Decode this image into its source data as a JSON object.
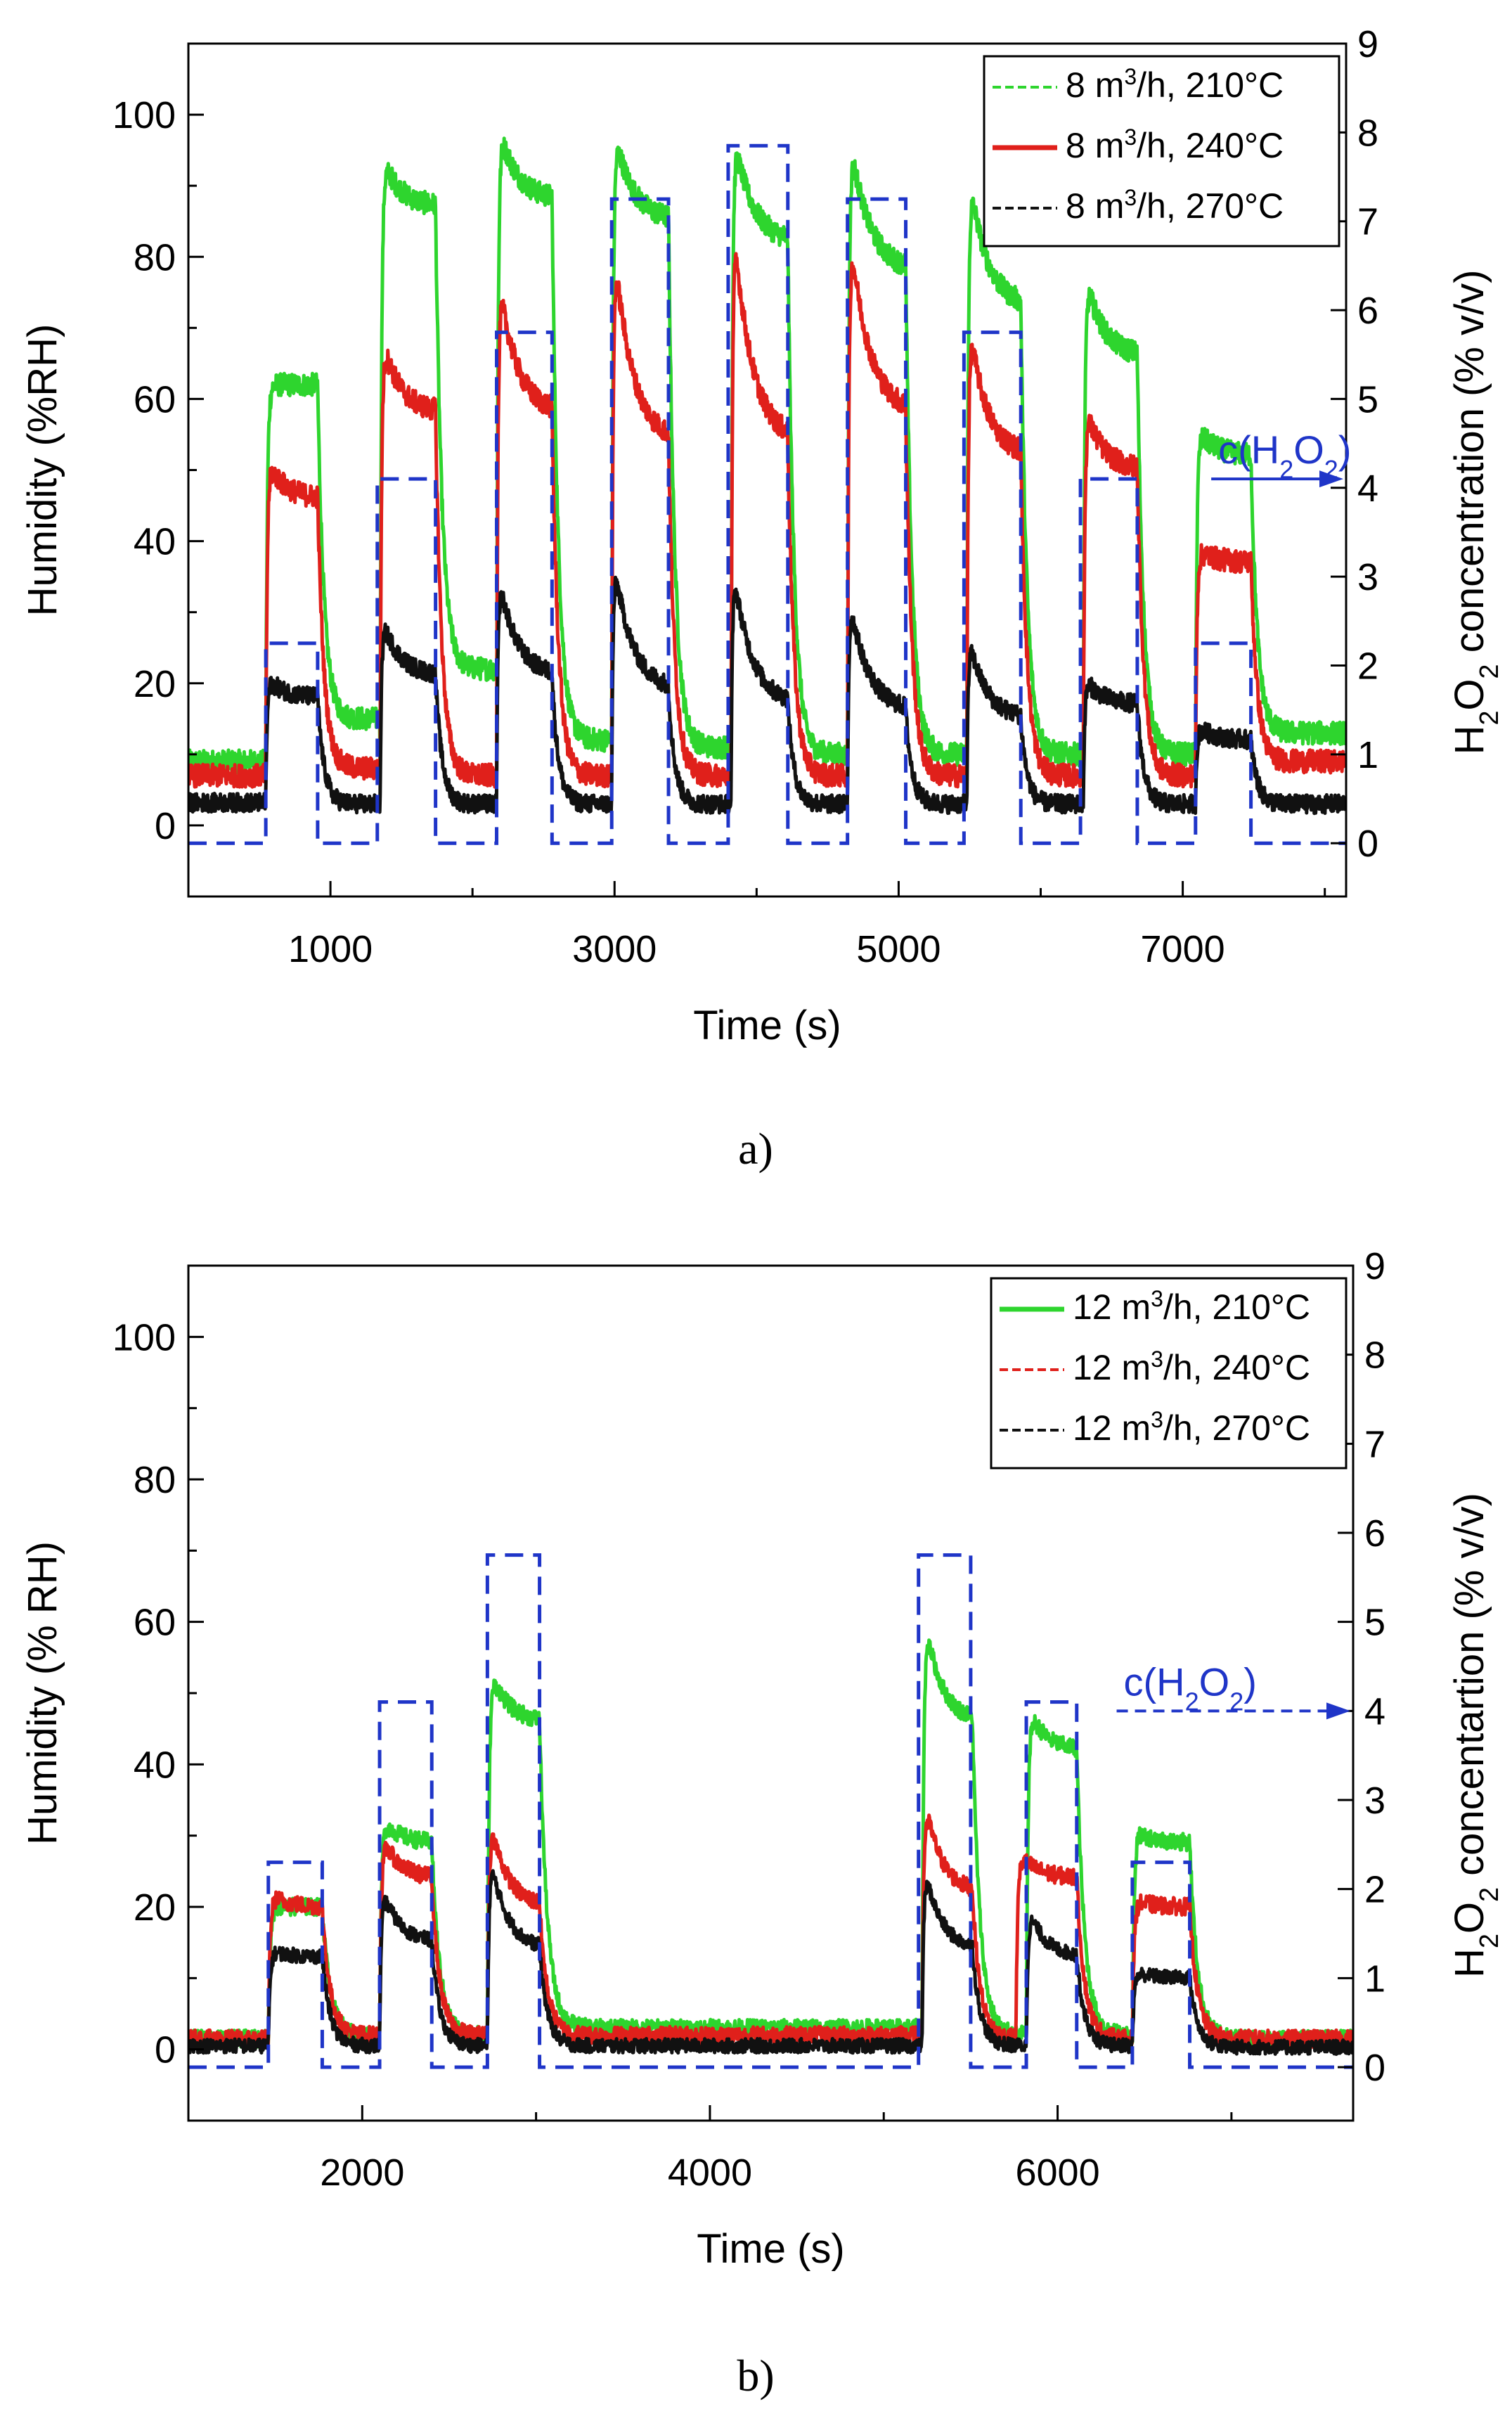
{
  "chart_data": [
    {
      "type": "line",
      "panel_label": "a)",
      "xlabel": "Time (s)",
      "ylabel": "Humidity (%RH)",
      "y2label_parts": {
        "pre": "H",
        "sub": "2",
        "mid": "O",
        "sub2": "2",
        "post": " concentration (% v/v)"
      },
      "xlim": [
        0,
        8150
      ],
      "ylim": [
        -10,
        110
      ],
      "y2lim": [
        -0.6,
        9
      ],
      "x_ticks": [
        1000,
        3000,
        5000,
        7000
      ],
      "x_tick_labels": [
        "1000",
        "3000",
        "5000",
        "7000"
      ],
      "x_minor_ticks": [
        2000,
        4000,
        6000,
        8000
      ],
      "y_ticks": [
        0,
        20,
        40,
        60,
        80,
        100
      ],
      "y_tick_labels": [
        "0",
        "20",
        "40",
        "60",
        "80",
        "100"
      ],
      "y2_ticks": [
        0,
        1,
        2,
        3,
        4,
        5,
        6,
        7,
        8,
        9
      ],
      "y2_tick_labels": [
        "0",
        "1",
        "2",
        "3",
        "4",
        "5",
        "6",
        "7",
        "8",
        "9"
      ],
      "legend_position": "top-right",
      "legend": [
        {
          "label": "8 m³/h, 210°C",
          "pre": "8 m",
          "sup": "3",
          "post": "/h, 210°C",
          "color": "#2ed52e",
          "dash": true
        },
        {
          "label": "8 m³/h, 240°C",
          "pre": "8 m",
          "sup": "3",
          "post": "/h, 240°C",
          "color": "#e0201b",
          "dash": false
        },
        {
          "label": "8 m³/h, 270°C",
          "pre": "8 m",
          "sup": "3",
          "post": "/h, 270°C",
          "color": "#111111",
          "dash": true
        }
      ],
      "annotation": {
        "pre": "c(H",
        "sub": "2",
        "mid": "O",
        "sub2": "2",
        "post": ")",
        "color": "#1f35c8",
        "x": 7250,
        "y2": 4.1,
        "arrow_to_x": 8150
      },
      "series": [
        {
          "name": "8 m³/h, 210°C",
          "color": "#2ed52e",
          "noise": 1.6,
          "baseline": 9,
          "pulses": [
            {
              "start": 545,
              "end": 910,
              "peak": 62,
              "plateau": 62,
              "tail": 15
            },
            {
              "start": 1350,
              "end": 1740,
              "peak": 95,
              "plateau": 87,
              "tail": 22
            },
            {
              "start": 2170,
              "end": 2560,
              "peak": 100,
              "plateau": 88,
              "tail": 12
            },
            {
              "start": 2980,
              "end": 3380,
              "peak": 100,
              "plateau": 85,
              "tail": 11
            },
            {
              "start": 3820,
              "end": 4220,
              "peak": 100,
              "plateau": 82,
              "tail": 10
            },
            {
              "start": 4640,
              "end": 5050,
              "peak": 100,
              "plateau": 78,
              "tail": 10
            },
            {
              "start": 5480,
              "end": 5860,
              "peak": 95,
              "plateau": 73,
              "tail": 10
            },
            {
              "start": 6300,
              "end": 6680,
              "peak": 79,
              "plateau": 66,
              "tail": 10
            },
            {
              "start": 7090,
              "end": 7480,
              "peak": 56,
              "plateau": 52,
              "tail": 13
            }
          ]
        },
        {
          "name": "8 m³/h, 240°C",
          "color": "#e0201b",
          "noise": 1.6,
          "baseline": 7,
          "pulses": [
            {
              "start": 545,
              "end": 910,
              "peak": 52,
              "plateau": 46,
              "tail": 8
            },
            {
              "start": 1350,
              "end": 1740,
              "peak": 70,
              "plateau": 58,
              "tail": 7
            },
            {
              "start": 2170,
              "end": 2560,
              "peak": 80,
              "plateau": 58,
              "tail": 7
            },
            {
              "start": 2980,
              "end": 3380,
              "peak": 86,
              "plateau": 54,
              "tail": 7
            },
            {
              "start": 3820,
              "end": 4220,
              "peak": 90,
              "plateau": 54,
              "tail": 7
            },
            {
              "start": 4640,
              "end": 5050,
              "peak": 88,
              "plateau": 58,
              "tail": 7
            },
            {
              "start": 5480,
              "end": 5860,
              "peak": 74,
              "plateau": 52,
              "tail": 7
            },
            {
              "start": 6300,
              "end": 6680,
              "peak": 60,
              "plateau": 50,
              "tail": 7
            },
            {
              "start": 7090,
              "end": 7480,
              "peak": 39,
              "plateau": 37,
              "tail": 9
            }
          ]
        },
        {
          "name": "8 m³/h, 270°C",
          "color": "#111111",
          "noise": 1.3,
          "baseline": 3.2,
          "pulses": [
            {
              "start": 545,
              "end": 910,
              "peak": 21,
              "plateau": 18,
              "tail": 3
            },
            {
              "start": 1350,
              "end": 1740,
              "peak": 30,
              "plateau": 21,
              "tail": 3
            },
            {
              "start": 2170,
              "end": 2560,
              "peak": 37,
              "plateau": 21,
              "tail": 3
            },
            {
              "start": 2980,
              "end": 3380,
              "peak": 40,
              "plateau": 19,
              "tail": 3
            },
            {
              "start": 3820,
              "end": 4220,
              "peak": 39,
              "plateau": 17,
              "tail": 3
            },
            {
              "start": 4640,
              "end": 5050,
              "peak": 34,
              "plateau": 16,
              "tail": 3
            },
            {
              "start": 5480,
              "end": 5860,
              "peak": 28,
              "plateau": 15,
              "tail": 3
            },
            {
              "start": 6300,
              "end": 6680,
              "peak": 21,
              "plateau": 17,
              "tail": 3
            },
            {
              "start": 7090,
              "end": 7480,
              "peak": 14,
              "plateau": 12,
              "tail": 3
            }
          ]
        }
      ],
      "h2o2_concentration": {
        "color": "#1f35c8",
        "baseline": 0,
        "steps": [
          {
            "start": 545,
            "end": 910,
            "value": 2.25
          },
          {
            "start": 1330,
            "end": 1740,
            "value": 4.1
          },
          {
            "start": 2170,
            "end": 2560,
            "value": 5.75
          },
          {
            "start": 2980,
            "end": 3380,
            "value": 7.25
          },
          {
            "start": 3800,
            "end": 4220,
            "value": 7.85
          },
          {
            "start": 4640,
            "end": 5050,
            "value": 7.25
          },
          {
            "start": 5460,
            "end": 5860,
            "value": 5.75
          },
          {
            "start": 6280,
            "end": 6680,
            "value": 4.1
          },
          {
            "start": 7090,
            "end": 7480,
            "value": 2.25
          }
        ]
      }
    },
    {
      "type": "line",
      "panel_label": "b)",
      "xlabel": "Time (s)",
      "ylabel": "Humidity (% RH)",
      "y2label_parts": {
        "pre": "H",
        "sub": "2",
        "mid": "O",
        "sub2": "2",
        "post": " concentartion (% v/v)"
      },
      "xlim": [
        1000,
        7700
      ],
      "ylim": [
        -10,
        110
      ],
      "y2lim": [
        -0.6,
        9
      ],
      "x_ticks": [
        2000,
        4000,
        6000
      ],
      "x_tick_labels": [
        "2000",
        "4000",
        "6000"
      ],
      "x_minor_ticks": [
        3000,
        5000,
        7000
      ],
      "y_ticks": [
        0,
        20,
        40,
        60,
        80,
        100
      ],
      "y_tick_labels": [
        "0",
        "20",
        "40",
        "60",
        "80",
        "100"
      ],
      "y2_ticks": [
        0,
        1,
        2,
        3,
        4,
        5,
        6,
        7,
        8,
        9
      ],
      "y2_tick_labels": [
        "0",
        "1",
        "2",
        "3",
        "4",
        "5",
        "6",
        "7",
        "8",
        "9"
      ],
      "legend_position": "top-right",
      "legend": [
        {
          "label": "12 m³/h, 210°C",
          "pre": "12 m",
          "sup": "3",
          "post": "/h, 210°C",
          "color": "#2ed52e",
          "dash": false
        },
        {
          "label": "12 m³/h, 240°C",
          "pre": "12 m",
          "sup": "3",
          "post": "/h, 240°C",
          "color": "#e0201b",
          "dash": true
        },
        {
          "label": "12 m³/h, 270°C",
          "pre": "12 m",
          "sup": "3",
          "post": "/h, 270°C",
          "color": "#111111",
          "dash": true
        }
      ],
      "annotation": {
        "pre": "c(H",
        "sub": "2",
        "mid": "O",
        "sub2": "2",
        "post": ")",
        "color": "#1f35c8",
        "x": 6380,
        "y2": 4.0,
        "arrow_to_x": 7700
      },
      "series": [
        {
          "name": "12 m³/h, 210°C",
          "color": "#2ed52e",
          "noise": 1.2,
          "baseline": 1.5,
          "pulses": [
            {
              "start": 1460,
              "end": 1770,
              "peak": 20,
              "plateau": 20,
              "tail": 2
            },
            {
              "start": 2100,
              "end": 2400,
              "peak": 33,
              "plateau": 29,
              "tail": 2
            },
            {
              "start": 2720,
              "end": 3020,
              "peak": 55,
              "plateau": 46,
              "tail": 3
            },
            {
              "start": 5220,
              "end": 5510,
              "peak": 64,
              "plateau": 46,
              "tail": 2
            },
            {
              "start": 5820,
              "end": 6110,
              "peak": 49,
              "plateau": 42,
              "tail": 2
            },
            {
              "start": 6430,
              "end": 6760,
              "peak": 31,
              "plateau": 29,
              "tail": 1.5
            }
          ]
        },
        {
          "name": "12 m³/h, 240°C",
          "color": "#e0201b",
          "noise": 1.2,
          "baseline": 1.5,
          "pulses": [
            {
              "start": 1460,
              "end": 1770,
              "peak": 22,
              "plateau": 20,
              "tail": 2
            },
            {
              "start": 2100,
              "end": 2400,
              "peak": 31,
              "plateau": 24,
              "tail": 2
            },
            {
              "start": 2720,
              "end": 3020,
              "peak": 35,
              "plateau": 20,
              "tail": 2
            },
            {
              "start": 5220,
              "end": 5510,
              "peak": 38,
              "plateau": 22,
              "tail": 1.5
            },
            {
              "start": 5760,
              "end": 6110,
              "peak": 28,
              "plateau": 24,
              "tail": 1.5
            },
            {
              "start": 6430,
              "end": 6760,
              "peak": 21,
              "plateau": 20,
              "tail": 1.5
            }
          ]
        },
        {
          "name": "12 m³/h, 270°C",
          "color": "#111111",
          "noise": 1.0,
          "baseline": 0.5,
          "pulses": [
            {
              "start": 1460,
              "end": 1770,
              "peak": 14,
              "plateau": 13,
              "tail": 0.5
            },
            {
              "start": 2100,
              "end": 2400,
              "peak": 24,
              "plateau": 15,
              "tail": 0.5
            },
            {
              "start": 2720,
              "end": 3020,
              "peak": 30,
              "plateau": 14,
              "tail": 0.5
            },
            {
              "start": 5220,
              "end": 5510,
              "peak": 28,
              "plateau": 14,
              "tail": 0.5
            },
            {
              "start": 5820,
              "end": 6110,
              "peak": 21,
              "plateau": 13,
              "tail": 0.5
            },
            {
              "start": 6430,
              "end": 6760,
              "peak": 11,
              "plateau": 10,
              "tail": 0.3
            }
          ]
        }
      ],
      "h2o2_concentration": {
        "color": "#1f35c8",
        "baseline": 0,
        "steps": [
          {
            "start": 1460,
            "end": 1770,
            "value": 2.3
          },
          {
            "start": 2100,
            "end": 2400,
            "value": 4.1
          },
          {
            "start": 2720,
            "end": 3020,
            "value": 5.75
          },
          {
            "start": 5200,
            "end": 5500,
            "value": 5.75
          },
          {
            "start": 5820,
            "end": 6110,
            "value": 4.1
          },
          {
            "start": 6430,
            "end": 6760,
            "value": 2.3
          }
        ]
      }
    }
  ]
}
